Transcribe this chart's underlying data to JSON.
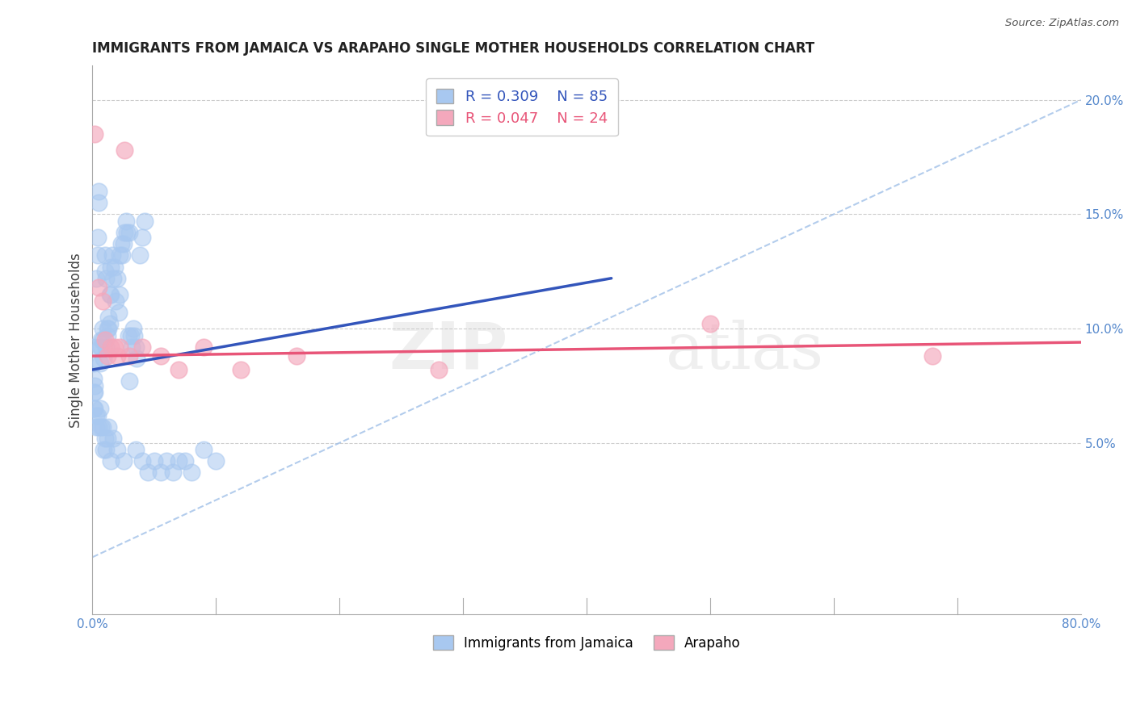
{
  "title": "IMMIGRANTS FROM JAMAICA VS ARAPAHO SINGLE MOTHER HOUSEHOLDS CORRELATION CHART",
  "source": "Source: ZipAtlas.com",
  "ylabel": "Single Mother Households",
  "xlim": [
    0.0,
    0.8
  ],
  "ylim": [
    -0.025,
    0.215
  ],
  "legend1_label": "Immigrants from Jamaica",
  "legend2_label": "Arapaho",
  "r1": 0.309,
  "n1": 85,
  "r2": 0.047,
  "n2": 24,
  "blue_color": "#A8C8F0",
  "pink_color": "#F4A8BC",
  "blue_line_color": "#3355BB",
  "pink_line_color": "#E85578",
  "blue_dash_color": "#A0C0E8",
  "axis_label_color": "#5588CC",
  "watermark_text": "ZIPatlas",
  "blue_line_x": [
    0.0,
    0.42
  ],
  "blue_line_y": [
    0.082,
    0.122
  ],
  "pink_line_x": [
    0.0,
    0.8
  ],
  "pink_line_y": [
    0.088,
    0.094
  ],
  "diag_line_x": [
    0.0,
    0.8
  ],
  "diag_line_y": [
    0.0,
    0.2
  ],
  "blue_points": [
    [
      0.002,
      0.075
    ],
    [
      0.003,
      0.122
    ],
    [
      0.004,
      0.14
    ],
    [
      0.004,
      0.132
    ],
    [
      0.005,
      0.16
    ],
    [
      0.005,
      0.155
    ],
    [
      0.006,
      0.092
    ],
    [
      0.006,
      0.085
    ],
    [
      0.007,
      0.092
    ],
    [
      0.007,
      0.095
    ],
    [
      0.008,
      0.1
    ],
    [
      0.008,
      0.095
    ],
    [
      0.009,
      0.087
    ],
    [
      0.01,
      0.125
    ],
    [
      0.01,
      0.132
    ],
    [
      0.011,
      0.092
    ],
    [
      0.011,
      0.122
    ],
    [
      0.012,
      0.1
    ],
    [
      0.012,
      0.097
    ],
    [
      0.013,
      0.105
    ],
    [
      0.013,
      0.1
    ],
    [
      0.014,
      0.115
    ],
    [
      0.014,
      0.102
    ],
    [
      0.015,
      0.115
    ],
    [
      0.015,
      0.127
    ],
    [
      0.016,
      0.132
    ],
    [
      0.017,
      0.122
    ],
    [
      0.018,
      0.127
    ],
    [
      0.019,
      0.112
    ],
    [
      0.02,
      0.122
    ],
    [
      0.021,
      0.107
    ],
    [
      0.022,
      0.115
    ],
    [
      0.022,
      0.132
    ],
    [
      0.023,
      0.137
    ],
    [
      0.024,
      0.132
    ],
    [
      0.025,
      0.137
    ],
    [
      0.026,
      0.142
    ],
    [
      0.027,
      0.147
    ],
    [
      0.028,
      0.142
    ],
    [
      0.029,
      0.097
    ],
    [
      0.03,
      0.142
    ],
    [
      0.031,
      0.097
    ],
    [
      0.032,
      0.092
    ],
    [
      0.033,
      0.1
    ],
    [
      0.034,
      0.097
    ],
    [
      0.035,
      0.092
    ],
    [
      0.036,
      0.087
    ],
    [
      0.038,
      0.132
    ],
    [
      0.04,
      0.14
    ],
    [
      0.042,
      0.147
    ],
    [
      0.001,
      0.085
    ],
    [
      0.001,
      0.092
    ],
    [
      0.001,
      0.078
    ],
    [
      0.001,
      0.072
    ],
    [
      0.001,
      0.065
    ],
    [
      0.002,
      0.072
    ],
    [
      0.002,
      0.065
    ],
    [
      0.003,
      0.062
    ],
    [
      0.003,
      0.057
    ],
    [
      0.004,
      0.062
    ],
    [
      0.005,
      0.057
    ],
    [
      0.006,
      0.065
    ],
    [
      0.007,
      0.057
    ],
    [
      0.008,
      0.057
    ],
    [
      0.009,
      0.047
    ],
    [
      0.01,
      0.052
    ],
    [
      0.011,
      0.047
    ],
    [
      0.012,
      0.052
    ],
    [
      0.013,
      0.057
    ],
    [
      0.015,
      0.042
    ],
    [
      0.017,
      0.052
    ],
    [
      0.02,
      0.047
    ],
    [
      0.025,
      0.042
    ],
    [
      0.03,
      0.077
    ],
    [
      0.035,
      0.047
    ],
    [
      0.04,
      0.042
    ],
    [
      0.045,
      0.037
    ],
    [
      0.05,
      0.042
    ],
    [
      0.055,
      0.037
    ],
    [
      0.06,
      0.042
    ],
    [
      0.065,
      0.037
    ],
    [
      0.07,
      0.042
    ],
    [
      0.075,
      0.042
    ],
    [
      0.08,
      0.037
    ],
    [
      0.09,
      0.047
    ],
    [
      0.1,
      0.042
    ]
  ],
  "pink_points": [
    [
      0.002,
      0.185
    ],
    [
      0.005,
      0.118
    ],
    [
      0.008,
      0.112
    ],
    [
      0.01,
      0.095
    ],
    [
      0.012,
      0.088
    ],
    [
      0.015,
      0.092
    ],
    [
      0.018,
      0.092
    ],
    [
      0.02,
      0.088
    ],
    [
      0.022,
      0.092
    ],
    [
      0.026,
      0.178
    ],
    [
      0.03,
      0.088
    ],
    [
      0.04,
      0.092
    ],
    [
      0.055,
      0.088
    ],
    [
      0.07,
      0.082
    ],
    [
      0.09,
      0.092
    ],
    [
      0.12,
      0.082
    ],
    [
      0.165,
      0.088
    ],
    [
      0.28,
      0.082
    ],
    [
      0.5,
      0.102
    ],
    [
      0.68,
      0.088
    ]
  ]
}
